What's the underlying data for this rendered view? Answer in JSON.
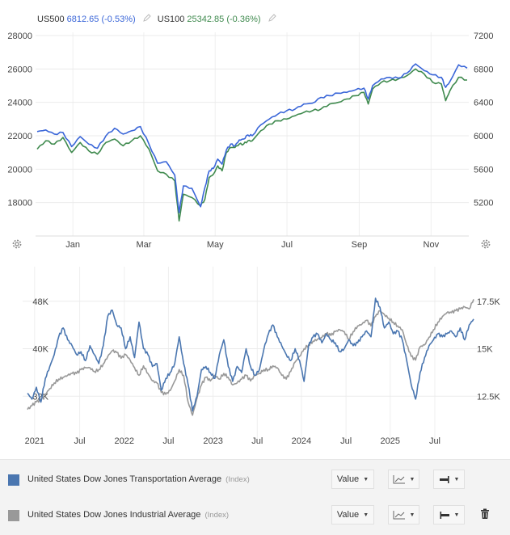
{
  "header": {
    "s1_symbol": "US500",
    "s1_value": "6812.65 (-0.53%)",
    "s2_symbol": "US100",
    "s2_value": "25342.85 (-0.36%)",
    "edit_icon": "pencil-icon"
  },
  "colors": {
    "us500": "#3a66d8",
    "us100": "#3f8a4e",
    "transport": "#4a76b0",
    "industrial": "#999999",
    "grid": "#ececec",
    "axis_text": "#444444"
  },
  "chart_data": [
    {
      "type": "line",
      "title": "",
      "xlabel": "",
      "ylabel": "",
      "x_ticks": [
        "Jan",
        "Mar",
        "May",
        "Jul",
        "Sep",
        "Nov"
      ],
      "y_left_ticks": [
        "28000",
        "26000",
        "24000",
        "22000",
        "20000",
        "18000"
      ],
      "y_left_range": [
        16000,
        28000
      ],
      "y_right_ticks": [
        "7200",
        "6800",
        "6400",
        "6000",
        "5600",
        "5200"
      ],
      "y_right_range": [
        4800,
        7200
      ],
      "grid": true,
      "legend": "top-left",
      "series": [
        {
          "name": "US500",
          "axis": "right",
          "x_frac": [
            0,
            0.02,
            0.04,
            0.06,
            0.08,
            0.1,
            0.12,
            0.14,
            0.16,
            0.18,
            0.2,
            0.22,
            0.24,
            0.26,
            0.28,
            0.3,
            0.32,
            0.33,
            0.34,
            0.36,
            0.38,
            0.39,
            0.4,
            0.41,
            0.42,
            0.43,
            0.44,
            0.45,
            0.46,
            0.47,
            0.48,
            0.49,
            0.5,
            0.52,
            0.54,
            0.56,
            0.58,
            0.6,
            0.62,
            0.64,
            0.66,
            0.68,
            0.7,
            0.72,
            0.74,
            0.76,
            0.77,
            0.78,
            0.8,
            0.82,
            0.84,
            0.86,
            0.88,
            0.9,
            0.92,
            0.94,
            0.95,
            0.96,
            0.98,
            1.0
          ],
          "values": [
            6050,
            6070,
            6020,
            6040,
            5870,
            5990,
            5900,
            5850,
            6000,
            6090,
            6020,
            6060,
            6110,
            5900,
            5670,
            5690,
            5530,
            5080,
            5400,
            5370,
            5150,
            5380,
            5580,
            5610,
            5720,
            5660,
            5830,
            5900,
            5880,
            5950,
            5960,
            6010,
            6000,
            6130,
            6200,
            6260,
            6300,
            6320,
            6380,
            6390,
            6460,
            6480,
            6510,
            6520,
            6550,
            6570,
            6440,
            6600,
            6680,
            6700,
            6690,
            6750,
            6860,
            6780,
            6730,
            6700,
            6580,
            6650,
            6850,
            6810
          ]
        },
        {
          "name": "US100",
          "axis": "left",
          "x_frac": [
            0,
            0.02,
            0.04,
            0.06,
            0.08,
            0.1,
            0.12,
            0.14,
            0.16,
            0.18,
            0.2,
            0.22,
            0.24,
            0.26,
            0.28,
            0.3,
            0.32,
            0.33,
            0.34,
            0.36,
            0.38,
            0.39,
            0.4,
            0.41,
            0.42,
            0.43,
            0.44,
            0.45,
            0.46,
            0.47,
            0.48,
            0.49,
            0.5,
            0.52,
            0.54,
            0.56,
            0.58,
            0.6,
            0.62,
            0.64,
            0.66,
            0.68,
            0.7,
            0.72,
            0.74,
            0.76,
            0.77,
            0.78,
            0.8,
            0.82,
            0.84,
            0.86,
            0.88,
            0.9,
            0.92,
            0.94,
            0.95,
            0.96,
            0.98,
            1.0
          ],
          "values": [
            21200,
            21700,
            21500,
            21900,
            21000,
            21600,
            21100,
            20900,
            21600,
            21800,
            21400,
            21700,
            22000,
            21200,
            19900,
            19700,
            19300,
            16900,
            18500,
            18300,
            17800,
            18200,
            19500,
            19700,
            20200,
            19900,
            21000,
            21300,
            21300,
            21500,
            21500,
            21700,
            21700,
            22300,
            22700,
            22900,
            23000,
            23200,
            23400,
            23500,
            23600,
            23900,
            24000,
            24200,
            24400,
            24600,
            23900,
            24800,
            25200,
            25300,
            25400,
            25600,
            26000,
            25700,
            25200,
            25100,
            24100,
            24700,
            25500,
            25340
          ]
        }
      ]
    },
    {
      "type": "line",
      "title": "",
      "xlabel": "",
      "ylabel": "",
      "x_ticks": [
        "2021",
        "Jul",
        "2022",
        "Jul",
        "2023",
        "Jul",
        "2024",
        "Jul",
        "2025",
        "Jul"
      ],
      "y_left_ticks": [
        "48K",
        "40K",
        "32K"
      ],
      "y_left_range": [
        24000,
        56000
      ],
      "y_right_ticks": [
        "17.5K",
        "15K",
        "12.5K"
      ],
      "y_right_range": [
        10000,
        20000
      ],
      "grid": true,
      "legend": "bottom",
      "series": [
        {
          "name": "United States Dow Jones Transportation Average",
          "axis": "left",
          "x_frac": [
            0,
            0.01,
            0.02,
            0.03,
            0.04,
            0.05,
            0.06,
            0.07,
            0.08,
            0.09,
            0.1,
            0.11,
            0.12,
            0.13,
            0.14,
            0.15,
            0.16,
            0.17,
            0.18,
            0.19,
            0.2,
            0.21,
            0.22,
            0.23,
            0.24,
            0.25,
            0.26,
            0.27,
            0.28,
            0.29,
            0.3,
            0.31,
            0.32,
            0.33,
            0.34,
            0.35,
            0.36,
            0.37,
            0.38,
            0.39,
            0.4,
            0.41,
            0.42,
            0.43,
            0.44,
            0.45,
            0.46,
            0.47,
            0.48,
            0.49,
            0.5,
            0.51,
            0.52,
            0.53,
            0.54,
            0.55,
            0.56,
            0.57,
            0.58,
            0.59,
            0.6,
            0.61,
            0.62,
            0.63,
            0.64,
            0.65,
            0.66,
            0.67,
            0.68,
            0.69,
            0.7,
            0.71,
            0.72,
            0.73,
            0.74,
            0.75,
            0.76,
            0.77,
            0.78,
            0.79,
            0.8,
            0.81,
            0.82,
            0.83,
            0.84,
            0.85,
            0.86,
            0.87,
            0.88,
            0.89,
            0.9,
            0.91,
            0.92,
            0.93,
            0.94,
            0.95,
            0.96,
            0.97,
            0.98,
            0.99,
            1.0
          ],
          "values": [
            32500,
            31500,
            33500,
            31000,
            35000,
            37000,
            39000,
            42000,
            43500,
            41500,
            40500,
            39000,
            39500,
            38000,
            40500,
            39000,
            37500,
            40500,
            45500,
            46500,
            44000,
            43500,
            40000,
            42000,
            38500,
            44500,
            40000,
            39000,
            37000,
            37500,
            33000,
            35000,
            36000,
            37500,
            42000,
            37500,
            34000,
            29500,
            32000,
            36500,
            37000,
            36000,
            35000,
            39000,
            41500,
            37000,
            34500,
            37000,
            36000,
            40000,
            37000,
            35500,
            36500,
            40000,
            42500,
            44000,
            42000,
            40500,
            39000,
            38000,
            40000,
            38000,
            34500,
            40500,
            42000,
            42500,
            41000,
            42500,
            41500,
            41000,
            39500,
            40000,
            41500,
            40500,
            41000,
            42000,
            43000,
            42000,
            48500,
            47000,
            43500,
            44500,
            42500,
            43000,
            41500,
            38000,
            34000,
            31500,
            36000,
            38500,
            40500,
            41500,
            42500,
            42000,
            42500,
            43000,
            42000,
            43500,
            41500,
            44000,
            45000
          ]
        },
        {
          "name": "United States Dow Jones Industrial Average",
          "axis": "right",
          "x_frac": [
            0,
            0.01,
            0.02,
            0.03,
            0.04,
            0.05,
            0.06,
            0.07,
            0.08,
            0.09,
            0.1,
            0.11,
            0.12,
            0.13,
            0.14,
            0.15,
            0.16,
            0.17,
            0.18,
            0.19,
            0.2,
            0.21,
            0.22,
            0.23,
            0.24,
            0.25,
            0.26,
            0.27,
            0.28,
            0.29,
            0.3,
            0.31,
            0.32,
            0.33,
            0.34,
            0.35,
            0.36,
            0.37,
            0.38,
            0.39,
            0.4,
            0.41,
            0.42,
            0.43,
            0.44,
            0.45,
            0.46,
            0.47,
            0.48,
            0.49,
            0.5,
            0.51,
            0.52,
            0.53,
            0.54,
            0.55,
            0.56,
            0.57,
            0.58,
            0.59,
            0.6,
            0.61,
            0.62,
            0.63,
            0.64,
            0.65,
            0.66,
            0.67,
            0.68,
            0.69,
            0.7,
            0.71,
            0.72,
            0.73,
            0.74,
            0.75,
            0.76,
            0.77,
            0.78,
            0.79,
            0.8,
            0.81,
            0.82,
            0.83,
            0.84,
            0.85,
            0.86,
            0.87,
            0.88,
            0.89,
            0.9,
            0.91,
            0.92,
            0.93,
            0.94,
            0.95,
            0.96,
            0.97,
            0.98,
            0.99,
            1.0
          ],
          "values": [
            11800,
            12000,
            12200,
            12300,
            12600,
            12900,
            13200,
            13400,
            13500,
            13600,
            13700,
            13700,
            13900,
            14000,
            14000,
            13800,
            13900,
            14200,
            14600,
            14900,
            14800,
            14500,
            14700,
            14400,
            14000,
            13600,
            14100,
            13700,
            13300,
            13200,
            12700,
            12600,
            12800,
            13300,
            13900,
            13600,
            12200,
            11500,
            12400,
            13100,
            13500,
            13300,
            13600,
            13400,
            13700,
            13500,
            13100,
            13200,
            13400,
            13600,
            13300,
            13600,
            13700,
            13900,
            13900,
            14100,
            14000,
            13600,
            13400,
            13800,
            14300,
            14600,
            15000,
            15200,
            15400,
            15500,
            15600,
            15800,
            15700,
            15900,
            16000,
            15900,
            15500,
            15900,
            16200,
            16300,
            16500,
            16200,
            16700,
            17000,
            16800,
            16600,
            16400,
            16200,
            16000,
            15200,
            14600,
            14400,
            15100,
            15200,
            15600,
            16000,
            16400,
            16700,
            16900,
            16900,
            17000,
            17100,
            17200,
            17100,
            17600
          ]
        }
      ]
    }
  ],
  "legend": {
    "rows": [
      {
        "label": "United States Dow Jones Transportation Average",
        "unit": "(Index)",
        "swatch": "#4a76b0",
        "value_btn": "Value",
        "chart_icon": "line-chart-icon",
        "axis_icon": "right-axis-icon",
        "delete": false
      },
      {
        "label": "United States Dow Jones Industrial Average",
        "unit": "(Index)",
        "swatch": "#999999",
        "value_btn": "Value",
        "chart_icon": "line-chart-icon",
        "axis_icon": "left-axis-icon",
        "delete": true
      }
    ]
  },
  "icons": {
    "settings": "gear-icon",
    "delete": "trash-icon"
  }
}
